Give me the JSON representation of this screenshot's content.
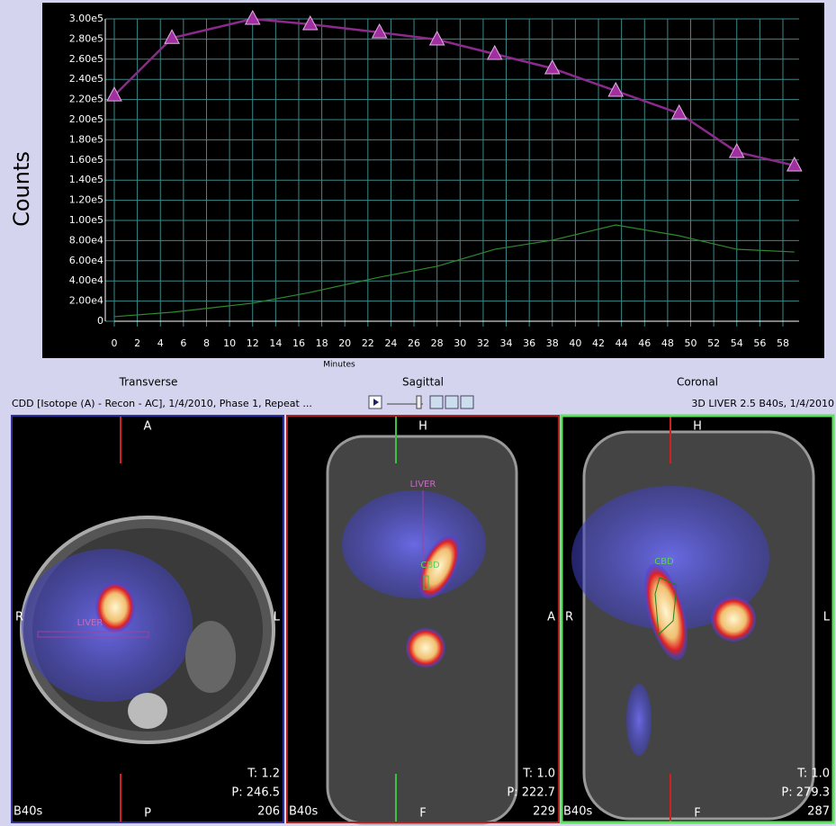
{
  "chart_data": {
    "type": "line",
    "y_label": "Counts",
    "x_label": "Minutes",
    "xlim": [
      0,
      59.4
    ],
    "ylim": [
      0,
      300000
    ],
    "xticks": [
      0,
      2,
      4,
      6,
      8,
      10,
      12,
      14,
      16,
      18,
      20,
      22,
      24,
      26,
      28,
      30,
      32,
      34,
      36,
      38,
      40,
      42,
      44,
      46,
      48,
      50,
      52,
      54,
      56,
      58
    ],
    "yticks": [
      0,
      {
        "value": 20000,
        "label": "2.00e4"
      },
      {
        "value": 40000,
        "label": "4.00e4"
      },
      {
        "value": 60000,
        "label": "6.00e4"
      },
      {
        "value": 80000,
        "label": "8.00e4"
      },
      {
        "value": 100000,
        "label": "1.00e5"
      },
      {
        "value": 120000,
        "label": "1.20e5"
      },
      {
        "value": 140000,
        "label": "1.40e5"
      },
      {
        "value": 160000,
        "label": "1.60e5"
      },
      {
        "value": 180000,
        "label": "1.80e5"
      },
      {
        "value": 200000,
        "label": "2.00e5"
      },
      {
        "value": 220000,
        "label": "2.20e5"
      },
      {
        "value": 240000,
        "label": "2.40e5"
      },
      {
        "value": 260000,
        "label": "2.60e5"
      },
      {
        "value": 280000,
        "label": "2.80e5"
      },
      {
        "value": 300000,
        "label": "3.00e5"
      }
    ],
    "grid": true,
    "x": [
      0,
      5,
      12,
      17,
      23,
      28,
      33,
      38,
      43.5,
      49,
      54,
      59
    ],
    "series": [
      {
        "color": "#8b2a8b",
        "marker": "triangle",
        "values": [
          224000,
          281000,
          300000,
          294600,
          286600,
          279500,
          265200,
          250900,
          228600,
          206300,
          167900,
          154500
        ]
      },
      {
        "color": "#2e8b2e",
        "values": [
          4500,
          8900,
          17900,
          28600,
          43700,
          54500,
          71400,
          80400,
          95500,
          84800,
          71400,
          68700
        ]
      }
    ]
  },
  "views": {
    "titles": [
      "Transverse",
      "Sagittal",
      "Coronal"
    ],
    "left_info": "CDD [Isotope (A) - Recon - AC], 1/4/2010, Phase 1, Repeat ...",
    "right_info": "3D LIVER 2.5 B40s, 1/4/2010"
  },
  "panels": [
    {
      "top": "A",
      "bottom": "P",
      "left": "R",
      "right": "L",
      "rois": [
        "LIVER"
      ],
      "t": "T: 1.2",
      "p": "P: 246.5",
      "slice": "206",
      "recon": "B40s"
    },
    {
      "top": "H",
      "bottom": "F",
      "right": "A",
      "rois": [
        "LIVER",
        "CBD"
      ],
      "t": "T: 1.0",
      "p": "P: 222.7",
      "slice": "229",
      "recon": "B40s"
    },
    {
      "top": "H",
      "bottom": "F",
      "left": "R",
      "right": "L",
      "rois": [
        "CBD"
      ],
      "t": "T: 1.0",
      "p": "P: 279.3",
      "slice": "287",
      "recon": "B40s"
    }
  ]
}
